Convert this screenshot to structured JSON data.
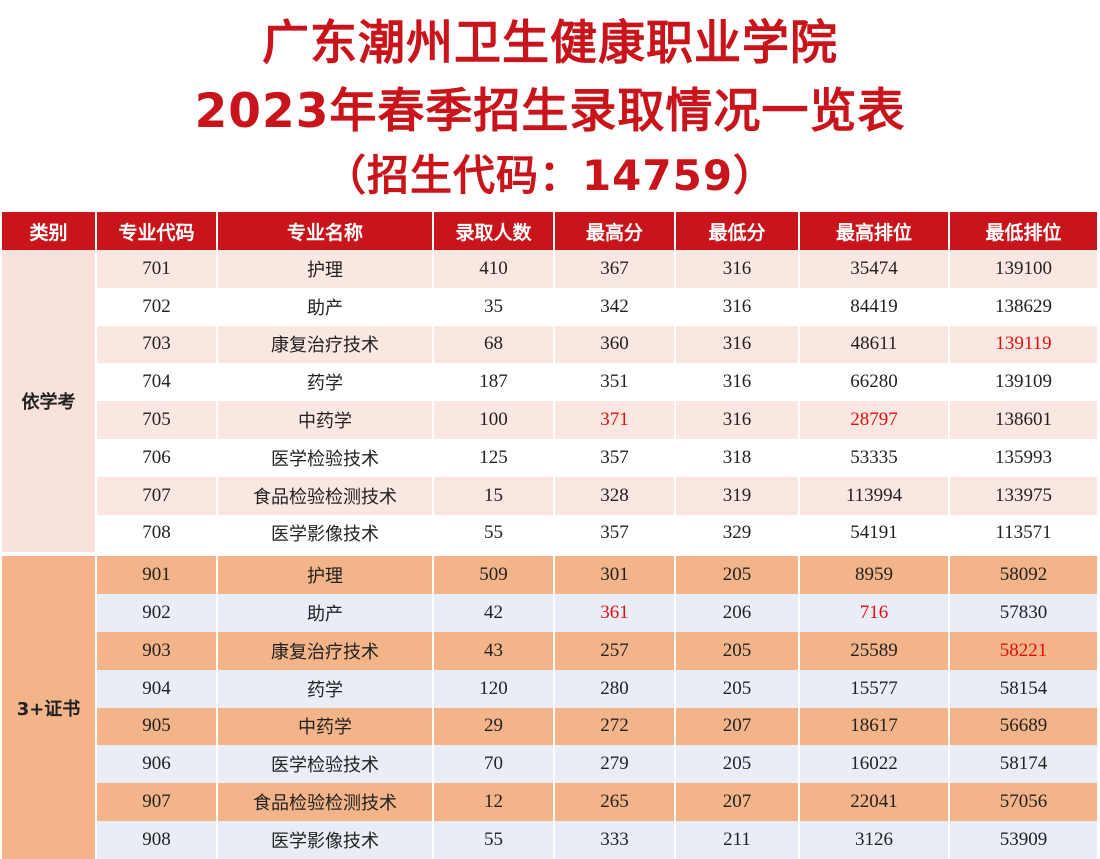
{
  "title": {
    "line1": "广东潮州卫生健康职业学院",
    "line2": "2023年春季招生录取情况一览表",
    "line3": "（招生代码：14759）"
  },
  "table": {
    "headers": [
      "类别",
      "专业代码",
      "专业名称",
      "录取人数",
      "最高分",
      "最低分",
      "最高排位",
      "最低排位"
    ],
    "highlight_color": "#e01010",
    "groups": [
      {
        "category": "依学考",
        "rows": [
          {
            "code": "701",
            "name": "护理",
            "count": "410",
            "max": "367",
            "min": "316",
            "max_rank": "35474",
            "min_rank": "139100",
            "hl": []
          },
          {
            "code": "702",
            "name": "助产",
            "count": "35",
            "max": "342",
            "min": "316",
            "max_rank": "84419",
            "min_rank": "138629",
            "hl": []
          },
          {
            "code": "703",
            "name": "康复治疗技术",
            "count": "68",
            "max": "360",
            "min": "316",
            "max_rank": "48611",
            "min_rank": "139119",
            "hl": [
              "min_rank"
            ]
          },
          {
            "code": "704",
            "name": "药学",
            "count": "187",
            "max": "351",
            "min": "316",
            "max_rank": "66280",
            "min_rank": "139109",
            "hl": []
          },
          {
            "code": "705",
            "name": "中药学",
            "count": "100",
            "max": "371",
            "min": "316",
            "max_rank": "28797",
            "min_rank": "138601",
            "hl": [
              "max",
              "max_rank"
            ]
          },
          {
            "code": "706",
            "name": "医学检验技术",
            "count": "125",
            "max": "357",
            "min": "318",
            "max_rank": "53335",
            "min_rank": "135993",
            "hl": []
          },
          {
            "code": "707",
            "name": "食品检验检测技术",
            "count": "15",
            "max": "328",
            "min": "319",
            "max_rank": "113994",
            "min_rank": "133975",
            "hl": []
          },
          {
            "code": "708",
            "name": "医学影像技术",
            "count": "55",
            "max": "357",
            "min": "329",
            "max_rank": "54191",
            "min_rank": "113571",
            "hl": []
          }
        ]
      },
      {
        "category": "3+证书",
        "rows": [
          {
            "code": "901",
            "name": "护理",
            "count": "509",
            "max": "301",
            "min": "205",
            "max_rank": "8959",
            "min_rank": "58092",
            "hl": []
          },
          {
            "code": "902",
            "name": "助产",
            "count": "42",
            "max": "361",
            "min": "206",
            "max_rank": "716",
            "min_rank": "57830",
            "hl": [
              "max",
              "max_rank"
            ]
          },
          {
            "code": "903",
            "name": "康复治疗技术",
            "count": "43",
            "max": "257",
            "min": "205",
            "max_rank": "25589",
            "min_rank": "58221",
            "hl": [
              "min_rank"
            ]
          },
          {
            "code": "904",
            "name": "药学",
            "count": "120",
            "max": "280",
            "min": "205",
            "max_rank": "15577",
            "min_rank": "58154",
            "hl": []
          },
          {
            "code": "905",
            "name": "中药学",
            "count": "29",
            "max": "272",
            "min": "207",
            "max_rank": "18617",
            "min_rank": "56689",
            "hl": []
          },
          {
            "code": "906",
            "name": "医学检验技术",
            "count": "70",
            "max": "279",
            "min": "205",
            "max_rank": "16022",
            "min_rank": "58174",
            "hl": []
          },
          {
            "code": "907",
            "name": "食品检验检测技术",
            "count": "12",
            "max": "265",
            "min": "207",
            "max_rank": "22041",
            "min_rank": "57056",
            "hl": []
          },
          {
            "code": "908",
            "name": "医学影像技术",
            "count": "55",
            "max": "333",
            "min": "211",
            "max_rank": "3126",
            "min_rank": "53909",
            "hl": []
          }
        ]
      }
    ]
  }
}
